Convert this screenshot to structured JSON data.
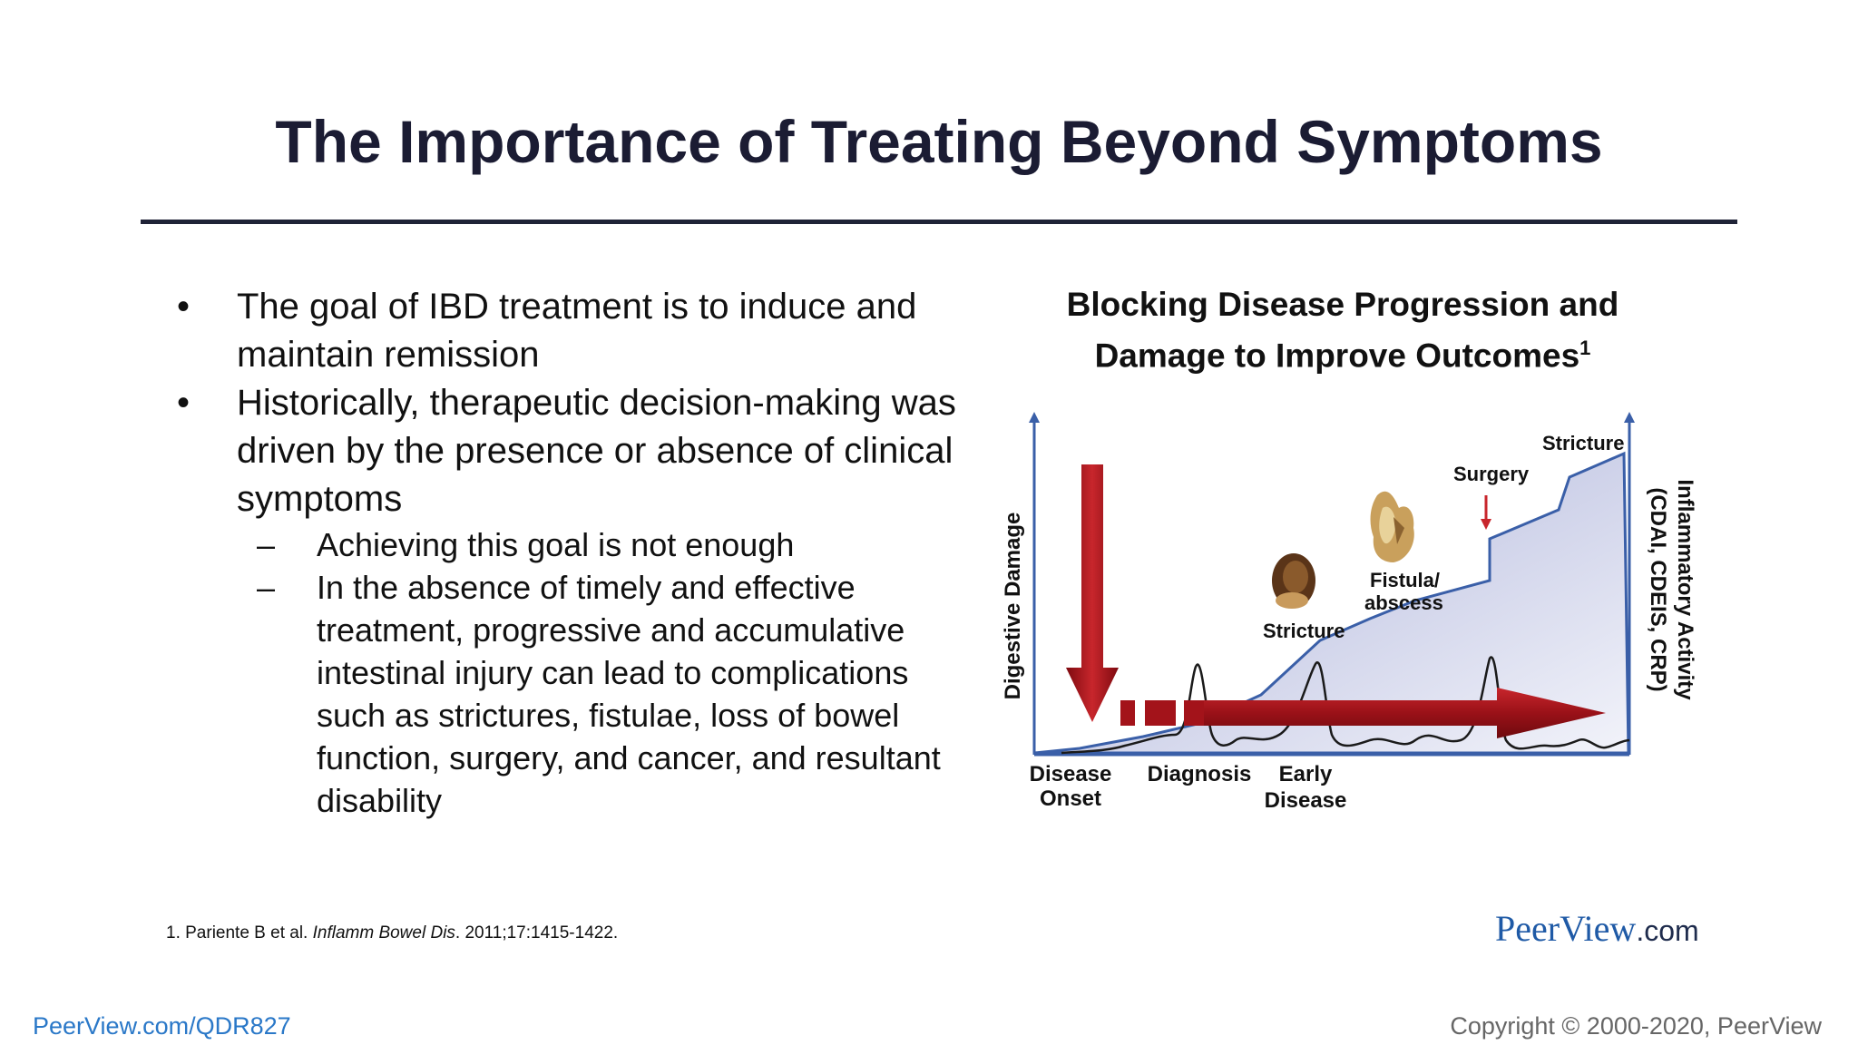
{
  "slide": {
    "title": "The Importance of Treating Beyond Symptoms"
  },
  "bullets": [
    {
      "mark": "•",
      "text": "The goal of IBD treatment is to induce and maintain remission"
    },
    {
      "mark": "•",
      "text": "Historically, therapeutic decision-making was driven by the presence or absence of clinical symptoms"
    }
  ],
  "sub_bullets": [
    {
      "mark": "–",
      "text": "Achieving this goal is not enough"
    },
    {
      "mark": "–",
      "text": "In the absence of timely and effective treatment, progressive and accumulative intestinal injury can lead to complications such as strictures, fistulae, loss of bowel function, surgery, and cancer, and resultant disability"
    }
  ],
  "diagram": {
    "title": "Blocking Disease Progression and Damage to Improve Outcomes",
    "title_ref": "1",
    "y_left_label": "Digestive Damage",
    "y_right_label_1": "Inflammatory Activity",
    "y_right_label_2": "(CDAI, CDEIS, CRP)",
    "x_labels": {
      "onset_1": "Disease",
      "onset_2": "Onset",
      "diagnosis": "Diagnosis",
      "early_1": "Early",
      "early_2": "Disease"
    },
    "annotations": {
      "stricture_low": "Stricture",
      "fistula_1": "Fistula/",
      "fistula_2": "abscess",
      "surgery": "Surgery",
      "stricture_high": "Stricture"
    },
    "colors": {
      "arrow": "#a3131a",
      "area_fill": "#c9cde6",
      "axis": "#3a5fa8"
    }
  },
  "footer": {
    "ref_prefix": "1. Pariente B et al. ",
    "ref_journal": "Inflamm Bowel Dis",
    "ref_suffix": ". 2011;17:1415-1422.",
    "brand_main": "PeerView",
    "brand_tld": ".com",
    "link": "PeerView.com/QDR827",
    "copyright": "Copyright © 2000-2020, PeerView"
  }
}
